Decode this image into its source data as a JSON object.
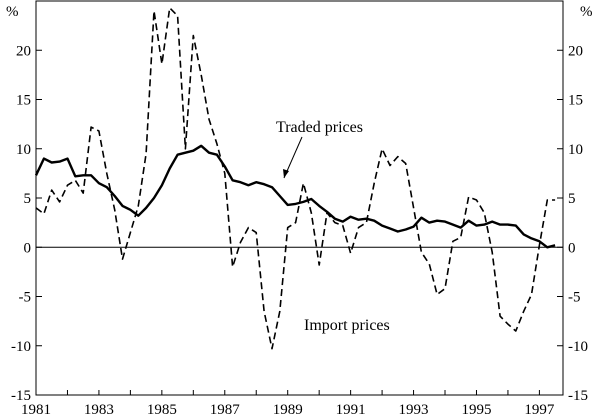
{
  "chart_data": {
    "type": "line",
    "title": "",
    "xlabel": "",
    "ylabel": "%",
    "y_unit_left": "%",
    "y_unit_right": "%",
    "xlim": [
      1981,
      1997.75
    ],
    "ylim": [
      -15,
      25
    ],
    "x_ticks": [
      1981,
      1983,
      1985,
      1987,
      1989,
      1991,
      1993,
      1995,
      1997
    ],
    "x_tick_labels": [
      "1981",
      "1983",
      "1985",
      "1987",
      "1989",
      "1991",
      "1993",
      "1995",
      "1997"
    ],
    "y_ticks": [
      -15,
      -10,
      -5,
      0,
      5,
      10,
      15,
      20
    ],
    "y_tick_labels": [
      "-15",
      "-10",
      "-5",
      "0",
      "5",
      "10",
      "15",
      "20"
    ],
    "grid": false,
    "legend": "none",
    "zero_line": true,
    "annotations": [
      {
        "text": "Traded prices",
        "series": "Traded prices"
      },
      {
        "text": "Import prices",
        "series": "Import prices"
      }
    ],
    "series": [
      {
        "name": "Traded prices",
        "style": "solid",
        "color": "#000000",
        "x": [
          1981.0,
          1981.25,
          1981.5,
          1981.75,
          1982.0,
          1982.25,
          1982.5,
          1982.75,
          1983.0,
          1983.25,
          1983.5,
          1983.75,
          1984.0,
          1984.25,
          1984.5,
          1984.75,
          1985.0,
          1985.25,
          1985.5,
          1985.75,
          1986.0,
          1986.25,
          1986.5,
          1986.75,
          1987.0,
          1987.25,
          1987.5,
          1987.75,
          1988.0,
          1988.25,
          1988.5,
          1988.75,
          1989.0,
          1989.25,
          1989.5,
          1989.75,
          1990.0,
          1990.25,
          1990.5,
          1990.75,
          1991.0,
          1991.25,
          1991.5,
          1991.75,
          1992.0,
          1992.25,
          1992.5,
          1992.75,
          1993.0,
          1993.25,
          1993.5,
          1993.75,
          1994.0,
          1994.25,
          1994.5,
          1994.75,
          1995.0,
          1995.25,
          1995.5,
          1995.75,
          1996.0,
          1996.25,
          1996.5,
          1996.75,
          1997.0,
          1997.25,
          1997.5
        ],
        "y": [
          7.3,
          9.0,
          8.6,
          8.7,
          9.0,
          7.2,
          7.3,
          7.3,
          6.5,
          6.1,
          5.2,
          4.2,
          3.8,
          3.2,
          4.0,
          5.0,
          6.3,
          8.0,
          9.4,
          9.6,
          9.8,
          10.3,
          9.6,
          9.4,
          8.2,
          6.8,
          6.6,
          6.3,
          6.6,
          6.4,
          6.1,
          5.2,
          4.3,
          4.4,
          4.6,
          4.9,
          4.2,
          3.6,
          2.9,
          2.6,
          3.1,
          2.8,
          2.9,
          2.7,
          2.2,
          1.9,
          1.6,
          1.8,
          2.1,
          3.0,
          2.5,
          2.7,
          2.6,
          2.3,
          2.0,
          2.7,
          2.2,
          2.3,
          2.6,
          2.3,
          2.3,
          2.2,
          1.3,
          0.9,
          0.6,
          0.0,
          0.2
        ]
      },
      {
        "name": "Import prices",
        "style": "dashed",
        "color": "#000000",
        "x": [
          1981.0,
          1981.25,
          1981.5,
          1981.75,
          1982.0,
          1982.25,
          1982.5,
          1982.75,
          1983.0,
          1983.25,
          1983.5,
          1983.75,
          1984.0,
          1984.25,
          1984.5,
          1984.75,
          1985.0,
          1985.25,
          1985.5,
          1985.75,
          1986.0,
          1986.25,
          1986.5,
          1986.75,
          1987.0,
          1987.25,
          1987.5,
          1987.75,
          1988.0,
          1988.25,
          1988.5,
          1988.75,
          1989.0,
          1989.25,
          1989.5,
          1989.75,
          1990.0,
          1990.25,
          1990.5,
          1990.75,
          1991.0,
          1991.25,
          1991.5,
          1991.75,
          1992.0,
          1992.25,
          1992.5,
          1992.75,
          1993.0,
          1993.25,
          1993.5,
          1993.75,
          1994.0,
          1994.25,
          1994.5,
          1994.75,
          1995.0,
          1995.25,
          1995.5,
          1995.75,
          1996.0,
          1996.25,
          1996.5,
          1996.75,
          1997.0,
          1997.25,
          1997.5
        ],
        "y": [
          4.0,
          3.4,
          5.8,
          4.6,
          6.3,
          6.8,
          5.5,
          12.2,
          11.8,
          7.5,
          3.8,
          -1.2,
          1.5,
          4.2,
          9.5,
          24.0,
          18.6,
          24.3,
          23.5,
          10.0,
          21.5,
          17.5,
          13.0,
          10.5,
          7.5,
          -2.0,
          0.5,
          2.0,
          1.5,
          -6.5,
          -10.3,
          -6.5,
          2.0,
          2.5,
          6.5,
          3.5,
          -1.8,
          3.5,
          2.5,
          2.2,
          -0.6,
          2.0,
          2.5,
          6.5,
          10.0,
          8.3,
          9.2,
          8.5,
          4.0,
          -0.5,
          -1.7,
          -4.8,
          -4.2,
          0.6,
          1.0,
          5.1,
          4.8,
          3.5,
          -0.5,
          -7.0,
          -7.8,
          -8.5,
          -6.5,
          -4.8,
          0.2,
          4.8,
          4.8
        ]
      }
    ]
  }
}
